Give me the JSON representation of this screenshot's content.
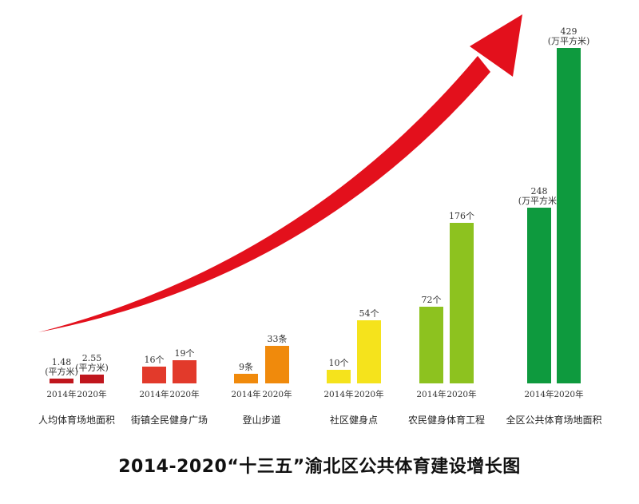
{
  "chart_data": {
    "type": "bar",
    "title": "2014-2020“十三五”渝北区公共体育建设增长图",
    "series_years": [
      "2014年",
      "2020年"
    ],
    "groups": [
      {
        "name": "人均体育场地面积",
        "color": "#c0161d",
        "values": [
          1.48,
          2.55
        ],
        "labels": [
          [
            "1.48",
            "(平方米)"
          ],
          [
            "2.55",
            "(平方米)"
          ]
        ],
        "display_heights": [
          6,
          11
        ]
      },
      {
        "name": "街镇全民健身广场",
        "color": "#e23a2b",
        "values": [
          16,
          19
        ],
        "labels": [
          [
            "16个"
          ],
          [
            "19个"
          ]
        ],
        "display_heights": [
          21,
          29
        ]
      },
      {
        "name": "登山步道",
        "color": "#f08a0c",
        "values": [
          9,
          33
        ],
        "labels": [
          [
            "9条"
          ],
          [
            "33条"
          ]
        ],
        "display_heights": [
          12,
          47
        ]
      },
      {
        "name": "社区健身点",
        "color": "#f5e31c",
        "values": [
          10,
          54
        ],
        "labels": [
          [
            "10个"
          ],
          [
            "54个"
          ]
        ],
        "display_heights": [
          17,
          79
        ]
      },
      {
        "name": "农民健身体育工程",
        "color": "#8dc21f",
        "values": [
          72,
          176
        ],
        "labels": [
          [
            "72个"
          ],
          [
            "176个"
          ]
        ],
        "display_heights": [
          96,
          201
        ]
      },
      {
        "name": "全区公共体育场地面积",
        "color": "#0e9a3e",
        "values": [
          248,
          429
        ],
        "labels": [
          [
            "248",
            "(万平方米)"
          ],
          [
            "429",
            "(万平方米)"
          ]
        ],
        "display_heights": [
          220,
          420
        ]
      }
    ],
    "arrow_color": "#e3101c",
    "legend": "none",
    "grid": false
  }
}
